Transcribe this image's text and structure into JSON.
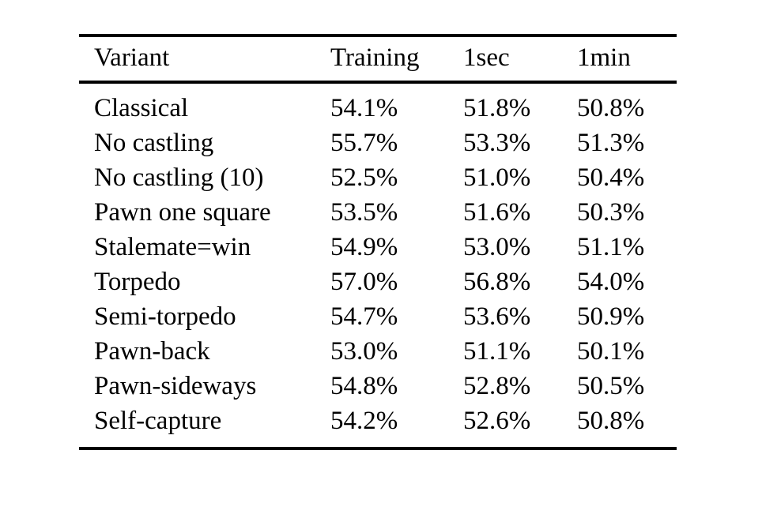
{
  "chart_data": {
    "type": "table",
    "headers": [
      "Variant",
      "Training",
      "1sec",
      "1min"
    ],
    "rows": [
      [
        "Classical",
        "54.1%",
        "51.8%",
        "50.8%"
      ],
      [
        "No castling",
        "55.7%",
        "53.3%",
        "51.3%"
      ],
      [
        "No castling (10)",
        "52.5%",
        "51.0%",
        "50.4%"
      ],
      [
        "Pawn one square",
        "53.5%",
        "51.6%",
        "50.3%"
      ],
      [
        "Stalemate=win",
        "54.9%",
        "53.0%",
        "51.1%"
      ],
      [
        "Torpedo",
        "57.0%",
        "56.8%",
        "54.0%"
      ],
      [
        "Semi-torpedo",
        "54.7%",
        "53.6%",
        "50.9%"
      ],
      [
        "Pawn-back",
        "53.0%",
        "51.1%",
        "50.1%"
      ],
      [
        "Pawn-sideways",
        "54.8%",
        "52.8%",
        "50.5%"
      ],
      [
        "Self-capture",
        "54.2%",
        "52.6%",
        "50.8%"
      ]
    ]
  },
  "colors": {
    "text": "#000000",
    "background": "#ffffff",
    "rule": "#000000"
  }
}
